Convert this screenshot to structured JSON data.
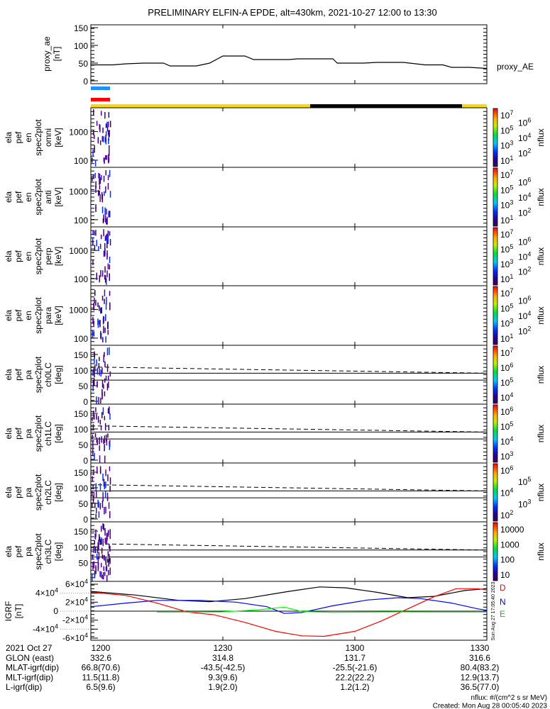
{
  "title": "PRELIMINARY ELFIN-A EPDE, alt=430km, 2021-10-27 12:00 to 13:30",
  "chart_data": {
    "type": "line",
    "time_range_minutes": [
      0,
      90
    ],
    "panels": [
      {
        "id": "proxy_ae",
        "ylabel_lines": [
          "proxy_ae",
          "[nT]"
        ],
        "yticks": [
          "150",
          "100",
          "50",
          "0"
        ],
        "ytick_values": [
          150,
          100,
          50,
          0
        ],
        "ylim": [
          0,
          150
        ],
        "legend": "proxy_AE",
        "series": [
          {
            "name": "proxy_AE",
            "color": "#000000",
            "points": [
              [
                0,
                45
              ],
              [
                5,
                45
              ],
              [
                8,
                48
              ],
              [
                12,
                50
              ],
              [
                16.5,
                50
              ],
              [
                18,
                42
              ],
              [
                24,
                42
              ],
              [
                27,
                50
              ],
              [
                30,
                70
              ],
              [
                35,
                70
              ],
              [
                37,
                60
              ],
              [
                45,
                60
              ],
              [
                47,
                62
              ],
              [
                55,
                62
              ],
              [
                56,
                50
              ],
              [
                62,
                50
              ],
              [
                65,
                52
              ],
              [
                71,
                52
              ],
              [
                76,
                45
              ],
              [
                80,
                45
              ],
              [
                82,
                38
              ],
              [
                86,
                38
              ],
              [
                90,
                35
              ]
            ]
          }
        ]
      }
    ],
    "spectrograms": [
      {
        "id": "omni",
        "ylabel_lines": [
          "ela",
          "pef",
          "en",
          "spec2plot",
          "omni",
          "[keV]"
        ],
        "yticks": [
          "1000",
          "100"
        ],
        "colorbar_exponents": [
          "7",
          "6",
          "5",
          "4",
          "3",
          "2",
          "1"
        ],
        "colorbar_label": "nflux"
      },
      {
        "id": "anti",
        "ylabel_lines": [
          "ela",
          "pef",
          "en",
          "spec2plot",
          "anti",
          "[keV]"
        ],
        "yticks": [
          "1000",
          "100"
        ],
        "colorbar_exponents": [
          "7",
          "6",
          "5",
          "4",
          "3",
          "2",
          "1"
        ],
        "colorbar_label": "nflux"
      },
      {
        "id": "perp",
        "ylabel_lines": [
          "ela",
          "pef",
          "en",
          "spec2plot",
          "perp",
          "[keV]"
        ],
        "yticks": [
          "1000",
          "100"
        ],
        "colorbar_exponents": [
          "7",
          "6",
          "5",
          "4",
          "3",
          "2",
          "1"
        ],
        "colorbar_label": "nflux"
      },
      {
        "id": "para",
        "ylabel_lines": [
          "ela",
          "pef",
          "en",
          "spec2plot",
          "para",
          "[keV]"
        ],
        "yticks": [
          "1000",
          "100"
        ],
        "colorbar_exponents": [
          "7",
          "6",
          "5",
          "4",
          "3",
          "2",
          "1"
        ],
        "colorbar_label": "nflux"
      },
      {
        "id": "ch0LC",
        "ylabel_lines": [
          "ela",
          "pef",
          "pa",
          "spec2plot",
          "ch0LC",
          "[deg]"
        ],
        "yticks": [
          "150",
          "100",
          "50",
          "0"
        ],
        "colorbar_exponents": [
          "7",
          "6",
          "5",
          "4"
        ],
        "colorbar_label": "nflux"
      },
      {
        "id": "ch1LC",
        "ylabel_lines": [
          "ela",
          "pef",
          "pa",
          "spec2plot",
          "ch1LC",
          "[deg]"
        ],
        "yticks": [
          "150",
          "100",
          "50",
          "0"
        ],
        "colorbar_exponents": [
          "6",
          "5",
          "4",
          "3"
        ],
        "colorbar_label": "nflux"
      },
      {
        "id": "ch2LC",
        "ylabel_lines": [
          "ela",
          "pef",
          "pa",
          "spec2plot",
          "ch2LC",
          "[deg]"
        ],
        "yticks": [
          "150",
          "100",
          "50",
          "0"
        ],
        "colorbar_exponents": [
          "6",
          "5",
          "4",
          "3",
          "2"
        ],
        "colorbar_label": "nflux"
      },
      {
        "id": "ch3LC",
        "ylabel_lines": [
          "ela",
          "pef",
          "pa",
          "spec2plot",
          "ch3LC",
          "[deg]"
        ],
        "yticks": [
          "150",
          "100",
          "50"
        ],
        "colorbar_plain_labels": [
          "10000",
          "1000",
          "100",
          "10"
        ],
        "colorbar_label": "nflux"
      }
    ],
    "igrf": {
      "ylabel_lines": [
        "IGRF",
        "[nT]"
      ],
      "yticks": [
        [
          "6",
          "4"
        ],
        [
          "4",
          "4"
        ],
        [
          "2",
          "4"
        ],
        [
          "0",
          ""
        ],
        [
          "-2",
          "4"
        ],
        [
          "-4",
          "4"
        ],
        [
          "-6",
          "4"
        ]
      ],
      "ylim": [
        -60000,
        60000
      ],
      "legend": [
        "D",
        "N",
        "E"
      ],
      "series": [
        {
          "name": "total",
          "color": "#000000",
          "points": [
            [
              0,
              44000
            ],
            [
              10,
              36000
            ],
            [
              20,
              24000
            ],
            [
              27,
              21000
            ],
            [
              35,
              28000
            ],
            [
              45,
              44000
            ],
            [
              52,
              54000
            ],
            [
              58,
              52000
            ],
            [
              65,
              42000
            ],
            [
              72,
              30000
            ],
            [
              78,
              33000
            ],
            [
              85,
              46000
            ],
            [
              90,
              50000
            ]
          ]
        },
        {
          "name": "D",
          "color": "#ff0000",
          "points": [
            [
              0,
              42000
            ],
            [
              8,
              35000
            ],
            [
              15,
              18000
            ],
            [
              22,
              -2000
            ],
            [
              28,
              -8000
            ],
            [
              35,
              -25000
            ],
            [
              42,
              -45000
            ],
            [
              48,
              -55000
            ],
            [
              53,
              -56000
            ],
            [
              60,
              -45000
            ],
            [
              66,
              -22000
            ],
            [
              72,
              5000
            ],
            [
              78,
              32000
            ],
            [
              83,
              50000
            ],
            [
              88,
              50000
            ],
            [
              90,
              47000
            ]
          ]
        },
        {
          "name": "N",
          "color": "#0000ff",
          "points": [
            [
              0,
              10000
            ],
            [
              8,
              18000
            ],
            [
              15,
              24000
            ],
            [
              25,
              24000
            ],
            [
              33,
              20000
            ],
            [
              40,
              10000
            ],
            [
              44,
              -5000
            ],
            [
              48,
              -3000
            ],
            [
              55,
              12000
            ],
            [
              63,
              25000
            ],
            [
              70,
              30000
            ],
            [
              75,
              28000
            ],
            [
              82,
              18000
            ],
            [
              88,
              5000
            ],
            [
              90,
              2000
            ]
          ]
        },
        {
          "name": "E",
          "color": "#00ff00",
          "points": [
            [
              15,
              -2000
            ],
            [
              25,
              -2000
            ],
            [
              30,
              -1500
            ],
            [
              38,
              3000
            ],
            [
              44,
              9000
            ],
            [
              48,
              -1000
            ],
            [
              55,
              -2500
            ],
            [
              70,
              -1500
            ],
            [
              80,
              -2000
            ],
            [
              90,
              -2000
            ]
          ]
        }
      ]
    },
    "xticks": [
      "1200",
      "1230",
      "1300",
      "1330"
    ]
  },
  "bars": {
    "blue": "#1e90ff",
    "red": "#ff0000",
    "yellow": "#ffd800",
    "black": "#000000"
  },
  "ephemeris": {
    "rows": [
      {
        "label": "2021 Oct 27",
        "values": [
          "1200",
          "1230",
          "1300",
          "1330"
        ]
      },
      {
        "label": "GLON (east)",
        "values": [
          "332.6",
          "314.8",
          "131.7",
          "316.6"
        ]
      },
      {
        "label": "MLAT-igrf(dip)",
        "values": [
          "66.8(70.6)",
          "-43.5(-42.5)",
          "-25.5(-21.6)",
          "80.4(83.2)"
        ]
      },
      {
        "label": "MLT-igrf(dip)",
        "values": [
          "11.5(11.8)",
          "9.3(9.6)",
          "22.2(22.2)",
          "12.9(13.7)"
        ]
      },
      {
        "label": "L-igrf(dip)",
        "values": [
          "6.5(9.6)",
          "1.9(2.0)",
          "1.2(1.2)",
          "36.5(77.0)"
        ]
      }
    ]
  },
  "footer": {
    "units": "nflux: #/(cm^2 s sr MeV)",
    "created": "Created: Mon Aug 28 00:05:40 2023",
    "side_stamp": "Sun Aug 27 17:05:40 2023"
  }
}
